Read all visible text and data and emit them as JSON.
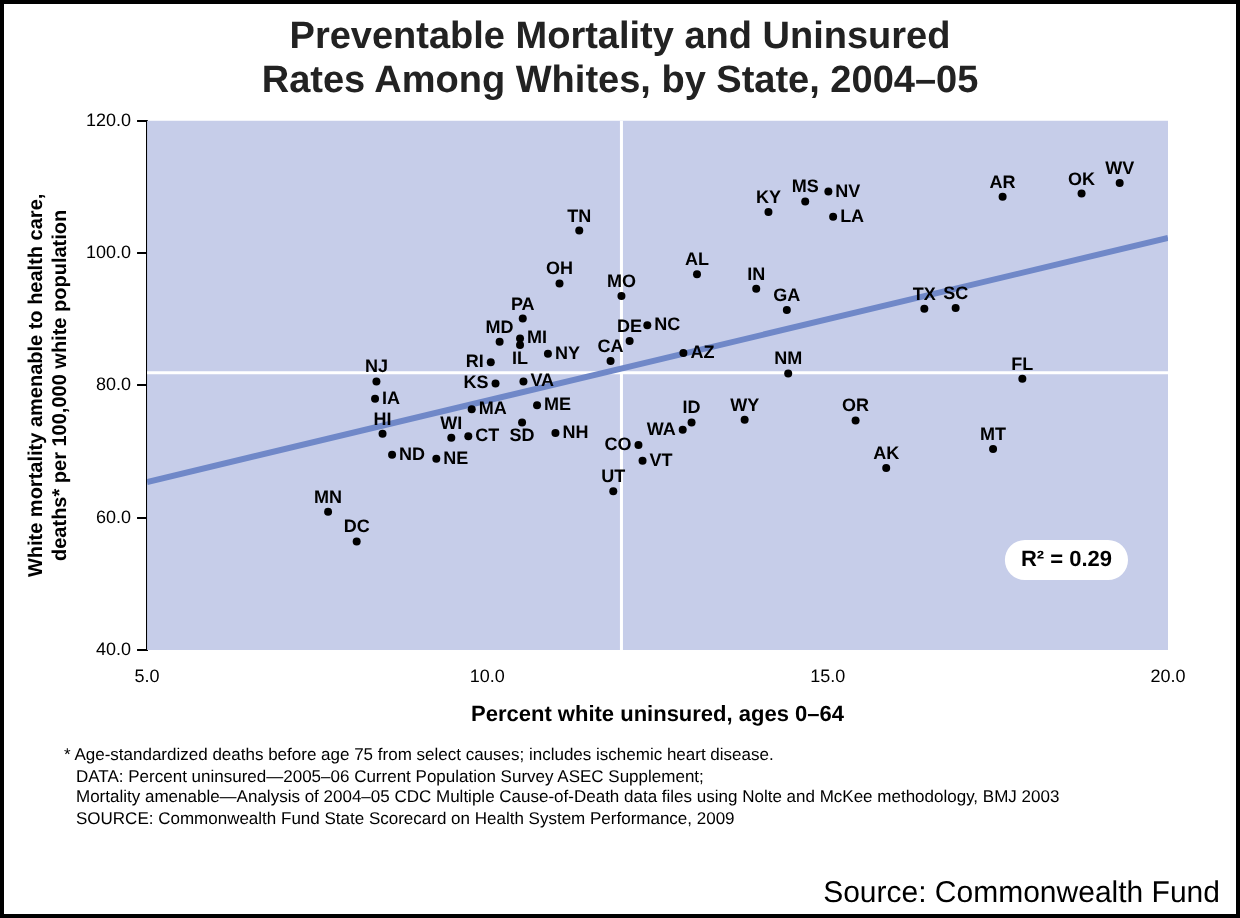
{
  "chart_data": {
    "type": "scatter",
    "title": "Preventable Mortality and Uninsured\nRates Among Whites, by State, 2004–05",
    "xlabel": "Percent white uninsured, ages 0–64",
    "ylabel": "White mortality amenable to health care,\ndeaths* per 100,000 white population",
    "annotations": [
      "R² = 0.29",
      "* Age-standardized deaths before age 75 from select causes; includes ischemic heart disease.",
      "DATA: Percent uninsured—2005–06 Current Population Survey ASEC Supplement;",
      "Mortality amenable—Analysis of 2004–05 CDC Multiple Cause-of-Death data files using Nolte and McKee methodology, BMJ 2003",
      "SOURCE: Commonwealth Fund State Scorecard on Health System Performance, 2009",
      "Source: Commonwealth Fund"
    ],
    "xlim": [
      5,
      20
    ],
    "ylim": [
      40,
      120
    ],
    "xticks": [
      {
        "value": 5,
        "label": "5.0"
      },
      {
        "value": 10,
        "label": "10.0"
      },
      {
        "value": 15,
        "label": "15.0"
      },
      {
        "value": 20,
        "label": "20.0"
      }
    ],
    "yticks": [
      {
        "value": 40,
        "label": "40.0"
      },
      {
        "value": 60,
        "label": "60.0"
      },
      {
        "value": 80,
        "label": "80.0"
      },
      {
        "value": 100,
        "label": "100.0"
      },
      {
        "value": 120,
        "label": "120.0"
      }
    ],
    "marker": "circle",
    "legend": false,
    "ref_lines": [
      {
        "axis": "x",
        "value": 11.97,
        "color": "#ffffff"
      },
      {
        "axis": "y",
        "value": 81.9,
        "color": "#ffffff"
      }
    ],
    "series": [
      {
        "type": "line",
        "marker": "none",
        "color": "#7088c8",
        "x": [
          5,
          20
        ],
        "values": [
          65.4,
          102.3
        ]
      },
      {
        "name": "TN",
        "color": "#000000",
        "x": [
          11.35
        ],
        "values": [
          103.4
        ]
      },
      {
        "name": "OH",
        "color": "#000000",
        "x": [
          11.06
        ],
        "values": [
          95.4
        ]
      },
      {
        "name": "MO",
        "color": "#000000",
        "x": [
          11.97
        ],
        "values": [
          93.5
        ]
      },
      {
        "name": "PA",
        "color": "#000000",
        "x": [
          10.52
        ],
        "values": [
          90.1
        ]
      },
      {
        "name": "MD",
        "color": "#000000",
        "x": [
          10.18
        ],
        "values": [
          86.6
        ]
      },
      {
        "name": "MI",
        "color": "#000000",
        "x": [
          10.48
        ],
        "values": [
          87.1
        ]
      },
      {
        "name": "IL",
        "color": "#000000",
        "x": [
          10.48
        ],
        "values": [
          86.1
        ]
      },
      {
        "name": "NY",
        "color": "#000000",
        "x": [
          10.89
        ],
        "values": [
          84.8
        ]
      },
      {
        "name": "RI",
        "color": "#000000",
        "x": [
          10.05
        ],
        "values": [
          83.5
        ]
      },
      {
        "name": "DE",
        "color": "#000000",
        "x": [
          12.09
        ],
        "values": [
          86.7
        ]
      },
      {
        "name": "CA",
        "color": "#000000",
        "x": [
          11.81
        ],
        "values": [
          83.7
        ]
      },
      {
        "name": "NC",
        "color": "#000000",
        "x": [
          12.35
        ],
        "values": [
          89.1
        ]
      },
      {
        "name": "KS",
        "color": "#000000",
        "x": [
          10.12
        ],
        "values": [
          80.3
        ]
      },
      {
        "name": "VA",
        "color": "#000000",
        "x": [
          10.53
        ],
        "values": [
          80.6
        ]
      },
      {
        "name": "NJ",
        "color": "#000000",
        "x": [
          8.37
        ],
        "values": [
          80.6
        ]
      },
      {
        "name": "IA",
        "color": "#000000",
        "x": [
          8.35
        ],
        "values": [
          78.0
        ]
      },
      {
        "name": "MA",
        "color": "#000000",
        "x": [
          9.77
        ],
        "values": [
          76.4
        ]
      },
      {
        "name": "ME",
        "color": "#000000",
        "x": [
          10.73
        ],
        "values": [
          77.0
        ]
      },
      {
        "name": "SD",
        "color": "#000000",
        "x": [
          10.51
        ],
        "values": [
          74.4
        ]
      },
      {
        "name": "NH",
        "color": "#000000",
        "x": [
          11.0
        ],
        "values": [
          72.8
        ]
      },
      {
        "name": "HI",
        "color": "#000000",
        "x": [
          8.46
        ],
        "values": [
          72.7
        ]
      },
      {
        "name": "WI",
        "color": "#000000",
        "x": [
          9.47
        ],
        "values": [
          72.1
        ]
      },
      {
        "name": "CT",
        "color": "#000000",
        "x": [
          9.72
        ],
        "values": [
          72.3
        ]
      },
      {
        "name": "ND",
        "color": "#000000",
        "x": [
          8.6
        ],
        "values": [
          69.5
        ]
      },
      {
        "name": "NE",
        "color": "#000000",
        "x": [
          9.25
        ],
        "values": [
          68.9
        ]
      },
      {
        "name": "MN",
        "color": "#000000",
        "x": [
          7.66
        ],
        "values": [
          60.9
        ]
      },
      {
        "name": "DC",
        "color": "#000000",
        "x": [
          8.08
        ],
        "values": [
          56.4
        ]
      },
      {
        "name": "UT",
        "color": "#000000",
        "x": [
          11.85
        ],
        "values": [
          64.0
        ]
      },
      {
        "name": "KY",
        "color": "#000000",
        "x": [
          14.13
        ],
        "values": [
          106.2
        ]
      },
      {
        "name": "MS",
        "color": "#000000",
        "x": [
          14.67
        ],
        "values": [
          107.8
        ]
      },
      {
        "name": "NV",
        "color": "#000000",
        "x": [
          15.01
        ],
        "values": [
          109.3
        ]
      },
      {
        "name": "LA",
        "color": "#000000",
        "x": [
          15.08
        ],
        "values": [
          105.5
        ]
      },
      {
        "name": "AL",
        "color": "#000000",
        "x": [
          13.08
        ],
        "values": [
          96.8
        ]
      },
      {
        "name": "IN",
        "color": "#000000",
        "x": [
          13.95
        ],
        "values": [
          94.6
        ]
      },
      {
        "name": "GA",
        "color": "#000000",
        "x": [
          14.4
        ],
        "values": [
          91.4
        ]
      },
      {
        "name": "TX",
        "color": "#000000",
        "x": [
          16.42
        ],
        "values": [
          91.6
        ]
      },
      {
        "name": "SC",
        "color": "#000000",
        "x": [
          16.88
        ],
        "values": [
          91.7
        ]
      },
      {
        "name": "AR",
        "color": "#000000",
        "x": [
          17.57
        ],
        "values": [
          108.5
        ]
      },
      {
        "name": "OK",
        "color": "#000000",
        "x": [
          18.73
        ],
        "values": [
          109.0
        ]
      },
      {
        "name": "WV",
        "color": "#000000",
        "x": [
          19.29
        ],
        "values": [
          110.6
        ]
      },
      {
        "name": "AZ",
        "color": "#000000",
        "x": [
          12.88
        ],
        "values": [
          84.9
        ]
      },
      {
        "name": "NM",
        "color": "#000000",
        "x": [
          14.42
        ],
        "values": [
          81.8
        ]
      },
      {
        "name": "FL",
        "color": "#000000",
        "x": [
          17.86
        ],
        "values": [
          81.0
        ]
      },
      {
        "name": "ID",
        "color": "#000000",
        "x": [
          13.0
        ],
        "values": [
          74.4
        ]
      },
      {
        "name": "WA",
        "color": "#000000",
        "x": [
          12.87
        ],
        "values": [
          73.3
        ]
      },
      {
        "name": "WY",
        "color": "#000000",
        "x": [
          13.78
        ],
        "values": [
          74.8
        ]
      },
      {
        "name": "OR",
        "color": "#000000",
        "x": [
          15.41
        ],
        "values": [
          74.7
        ]
      },
      {
        "name": "CO",
        "color": "#000000",
        "x": [
          12.22
        ],
        "values": [
          71.0
        ]
      },
      {
        "name": "VT",
        "color": "#000000",
        "x": [
          12.28
        ],
        "values": [
          68.6
        ]
      },
      {
        "name": "AK",
        "color": "#000000",
        "x": [
          15.86
        ],
        "values": [
          67.5
        ]
      },
      {
        "name": "MT",
        "color": "#000000",
        "x": [
          17.43
        ],
        "values": [
          70.4
        ]
      }
    ]
  }
}
